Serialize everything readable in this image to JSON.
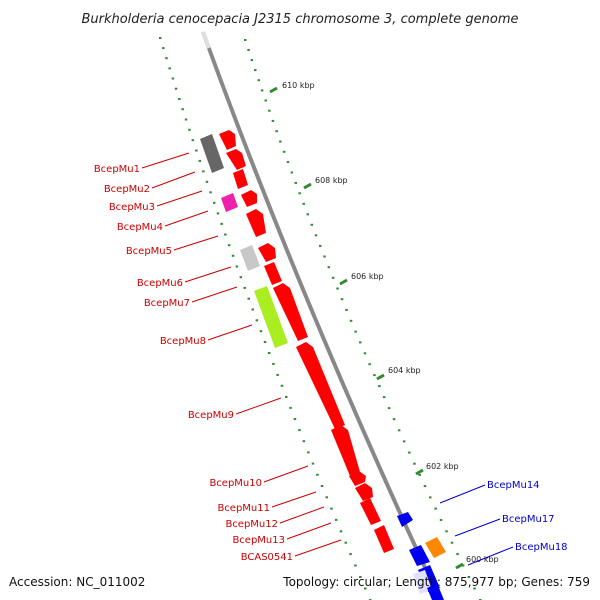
{
  "title": "Burkholderia cenocepacia J2315 chromosome 3, complete genome",
  "footer": {
    "accession": "Accession: NC_011002",
    "topology": "Topology: circular; Length: 875,977 bp; Genes: 759"
  },
  "scale_ticks": [
    "610 kbp",
    "608 kbp",
    "606 kbp",
    "604 kbp",
    "602 kbp",
    "600 kbp"
  ],
  "colors": {
    "gene_red": "#ff0000",
    "label_red": "#cc0000",
    "label_blue": "#0000cc",
    "backbone": "#888888",
    "tick_green": "#2e8b2e",
    "dark_gray": "#666666",
    "light_gray": "#c8c8c8",
    "magenta": "#ee22aa",
    "lime": "#aaee22",
    "blue": "#0000ee",
    "orange": "#ff8800"
  },
  "left_labels": [
    "BcepMu1",
    "BcepMu2",
    "BcepMu3",
    "BcepMu4",
    "BcepMu5",
    "BcepMu6",
    "BcepMu7",
    "BcepMu8",
    "BcepMu9",
    "BcepMu10",
    "BcepMu11",
    "BcepMu12",
    "BcepMu13",
    "BCAS0541"
  ],
  "right_labels": [
    "BcepMu14",
    "BcepMu17",
    "BcepMu18"
  ]
}
